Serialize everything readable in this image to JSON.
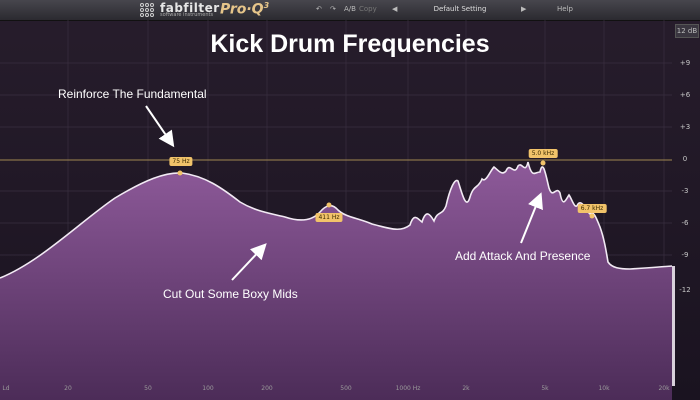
{
  "toolbar": {
    "brand": "fabfilter",
    "tagline": "software instruments",
    "product": "Pro·Q",
    "product_version": "3",
    "undo_glyph": "↶",
    "redo_glyph": "↷",
    "ab": "A/B",
    "copy": "Copy",
    "prev_glyph": "◀",
    "preset": "Default Setting",
    "next_glyph": "▶",
    "help": "Help"
  },
  "title": "Kick Drum Frequencies",
  "range_badge": "12 dB",
  "y_ticks": [
    "+9",
    "+6",
    "+3",
    "0",
    "-3",
    "-6",
    "-9",
    "-12"
  ],
  "x_ticks": [
    "Ld",
    "20",
    "50",
    "100",
    "200",
    "500",
    "1000 Hz",
    "2k",
    "5k",
    "10k",
    "20k"
  ],
  "annotations": {
    "fundamental": "Reinforce The Fundamental",
    "boxy": "Cut Out Some Boxy Mids",
    "attack": "Add Attack And Presence"
  },
  "band_badges": [
    "75 Hz",
    "411 Hz",
    "5.0 kHz",
    "6.7 kHz"
  ],
  "colors": {
    "spectrum_fill": "#7a4a86",
    "spectrum_outline": "#f2eaf4",
    "badge": "#f1c36a",
    "zero_line": "#a08850"
  }
}
